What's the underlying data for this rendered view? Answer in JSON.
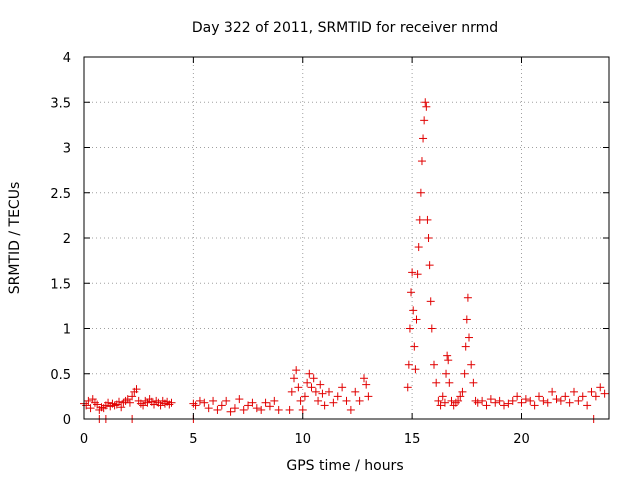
{
  "chart_data": {
    "type": "scatter",
    "title": "Day 322 of 2011, SRMTID for receiver nrmd",
    "xlabel": "GPS time / hours",
    "ylabel": "SRMTID / TECUs",
    "xlim": [
      0,
      24
    ],
    "ylim": [
      0,
      4
    ],
    "xticks": [
      0,
      5,
      10,
      15,
      20
    ],
    "xtick_labels": [
      "0",
      "5",
      "10",
      "15",
      "20"
    ],
    "yticks": [
      0,
      0.5,
      1,
      1.5,
      2,
      2.5,
      3,
      3.5,
      4
    ],
    "ytick_labels": [
      "0",
      "0.5",
      "1",
      "1.5",
      "2",
      "2.5",
      "3",
      "3.5",
      "4"
    ],
    "grid": true,
    "marker": "+",
    "color": "#e00000",
    "series": [
      {
        "name": "SRMTID",
        "x": [
          0.0,
          0.1,
          0.2,
          0.3,
          0.4,
          0.5,
          0.6,
          0.7,
          0.8,
          0.9,
          1.0,
          1.1,
          1.2,
          1.3,
          1.4,
          1.5,
          1.6,
          1.7,
          1.8,
          1.9,
          2.0,
          2.1,
          2.2,
          2.3,
          2.4,
          2.5,
          2.6,
          2.7,
          2.8,
          2.9,
          3.0,
          3.1,
          3.2,
          3.3,
          3.4,
          3.5,
          3.6,
          3.7,
          3.8,
          3.9,
          4.0,
          5.0,
          5.1,
          5.3,
          5.5,
          5.7,
          5.9,
          6.1,
          6.3,
          6.5,
          6.7,
          6.9,
          7.1,
          7.3,
          7.5,
          7.7,
          7.9,
          8.1,
          8.3,
          8.5,
          8.7,
          8.9,
          9.4,
          9.5,
          9.6,
          9.7,
          9.8,
          9.9,
          10.0,
          10.1,
          10.2,
          10.3,
          10.4,
          10.5,
          10.6,
          10.7,
          10.8,
          10.9,
          11.0,
          11.2,
          11.4,
          11.6,
          11.8,
          12.0,
          12.2,
          12.4,
          12.6,
          12.8,
          12.9,
          13.0,
          14.8,
          14.85,
          14.9,
          14.95,
          15.0,
          15.05,
          15.1,
          15.15,
          15.2,
          15.25,
          15.3,
          15.35,
          15.4,
          15.45,
          15.5,
          15.55,
          15.6,
          15.65,
          15.7,
          15.75,
          15.8,
          15.85,
          15.9,
          16.0,
          16.1,
          16.2,
          16.3,
          16.4,
          16.5,
          16.55,
          16.6,
          16.65,
          16.7,
          16.8,
          16.9,
          17.0,
          17.1,
          17.2,
          17.3,
          17.4,
          17.45,
          17.5,
          17.55,
          17.6,
          17.7,
          17.8,
          17.9,
          18.0,
          18.2,
          18.4,
          18.6,
          18.8,
          19.0,
          19.2,
          19.4,
          19.6,
          19.8,
          20.0,
          20.2,
          20.4,
          20.6,
          20.8,
          21.0,
          21.2,
          21.4,
          21.6,
          21.8,
          22.0,
          22.2,
          22.4,
          22.6,
          22.8,
          23.0,
          23.2,
          23.4,
          23.6,
          23.8,
          0.7,
          1.0,
          2.2,
          5.0,
          23.3
        ],
        "y": [
          0.17,
          0.15,
          0.2,
          0.12,
          0.22,
          0.18,
          0.16,
          0.1,
          0.13,
          0.12,
          0.15,
          0.18,
          0.14,
          0.17,
          0.15,
          0.16,
          0.19,
          0.13,
          0.18,
          0.2,
          0.22,
          0.18,
          0.25,
          0.3,
          0.33,
          0.2,
          0.17,
          0.15,
          0.2,
          0.18,
          0.22,
          0.19,
          0.16,
          0.2,
          0.18,
          0.15,
          0.2,
          0.17,
          0.19,
          0.16,
          0.18,
          0.17,
          0.15,
          0.2,
          0.18,
          0.12,
          0.2,
          0.1,
          0.15,
          0.2,
          0.08,
          0.12,
          0.22,
          0.1,
          0.15,
          0.18,
          0.12,
          0.1,
          0.18,
          0.14,
          0.2,
          0.1,
          0.1,
          0.3,
          0.45,
          0.54,
          0.35,
          0.2,
          0.1,
          0.25,
          0.4,
          0.5,
          0.35,
          0.45,
          0.3,
          0.2,
          0.38,
          0.28,
          0.15,
          0.3,
          0.18,
          0.25,
          0.35,
          0.2,
          0.1,
          0.3,
          0.2,
          0.45,
          0.38,
          0.25,
          0.35,
          0.6,
          1.0,
          1.4,
          1.62,
          1.2,
          0.8,
          0.55,
          1.1,
          1.6,
          1.9,
          2.2,
          2.5,
          2.85,
          3.1,
          3.3,
          3.5,
          3.45,
          2.2,
          2.0,
          1.7,
          1.3,
          1.0,
          0.6,
          0.4,
          0.2,
          0.15,
          0.25,
          0.18,
          0.5,
          0.7,
          0.65,
          0.4,
          0.2,
          0.15,
          0.18,
          0.2,
          0.25,
          0.3,
          0.5,
          0.8,
          1.1,
          1.34,
          0.9,
          0.6,
          0.4,
          0.2,
          0.18,
          0.2,
          0.15,
          0.22,
          0.18,
          0.2,
          0.15,
          0.17,
          0.2,
          0.25,
          0.18,
          0.22,
          0.2,
          0.15,
          0.25,
          0.2,
          0.18,
          0.3,
          0.22,
          0.2,
          0.25,
          0.18,
          0.3,
          0.2,
          0.25,
          0.15,
          0.3,
          0.25,
          0.35,
          0.28,
          0.0,
          0.0,
          0.0,
          0.0,
          0.0
        ]
      }
    ]
  }
}
